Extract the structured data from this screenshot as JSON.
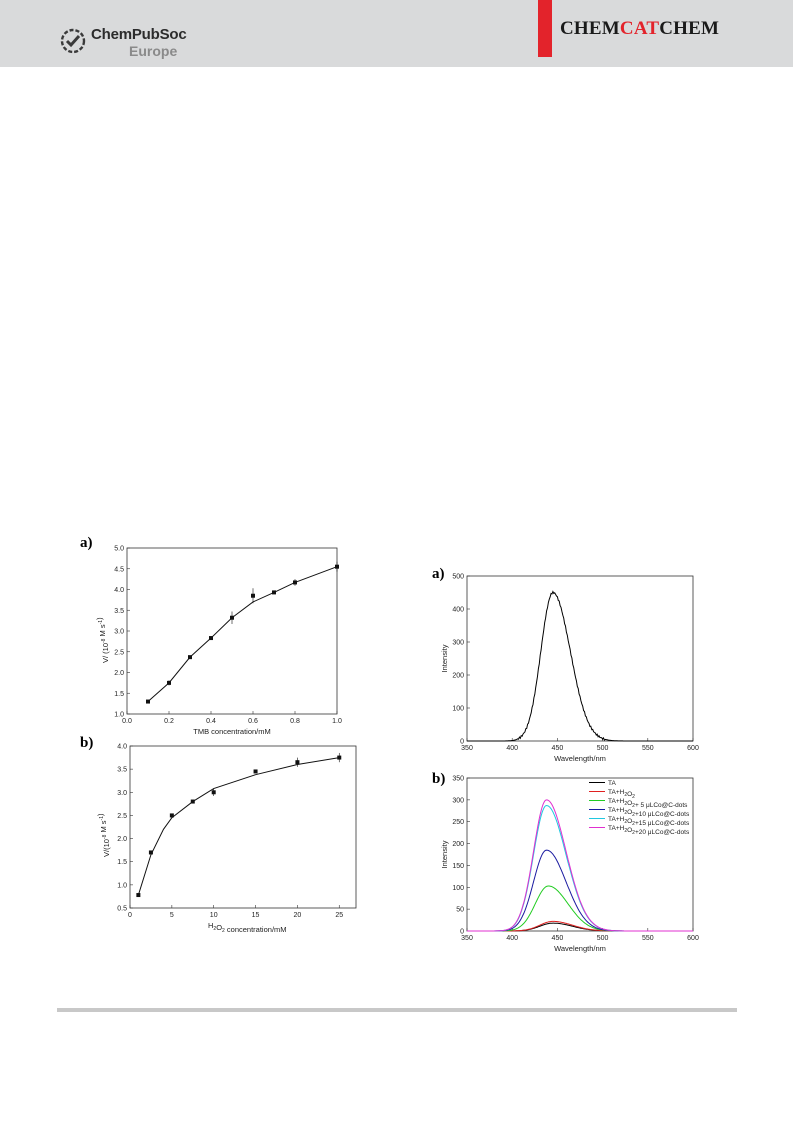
{
  "header": {
    "publisher_name": "ChemPubSoc",
    "publisher_sub": "Europe",
    "journal_left": "CHEM",
    "journal_mid": "CAT",
    "journal_right": "CHEM",
    "accent_color": "#e3232b"
  },
  "panel_labels": {
    "left_a": "a)",
    "left_b": "b)",
    "right_a": "a)",
    "right_b": "b)"
  },
  "chart_data": [
    {
      "id": "kinetics-tmb",
      "type": "scatter",
      "xlabel": "TMB concentration/mM",
      "ylabel_main": "V/ (10",
      "ylabel_sup": "-8",
      "ylabel_tail": " M s",
      "ylabel_sup2": "-1",
      "ylabel_close": ")",
      "xlim": [
        0.0,
        1.0
      ],
      "ylim": [
        1.0,
        5.0
      ],
      "xticks": [
        "0.0",
        "0.2",
        "0.4",
        "0.6",
        "0.8",
        "1.0"
      ],
      "yticks": [
        "1.0",
        "1.5",
        "2.0",
        "2.5",
        "3.0",
        "3.5",
        "4.0",
        "4.5",
        "5.0"
      ],
      "points": [
        {
          "x": 0.1,
          "y": 1.3,
          "err": 0.03
        },
        {
          "x": 0.2,
          "y": 1.75,
          "err": 0.06
        },
        {
          "x": 0.3,
          "y": 2.37,
          "err": 0.03
        },
        {
          "x": 0.4,
          "y": 2.83,
          "err": 0.03
        },
        {
          "x": 0.5,
          "y": 3.32,
          "err": 0.15
        },
        {
          "x": 0.6,
          "y": 3.85,
          "err": 0.18
        },
        {
          "x": 0.7,
          "y": 3.93,
          "err": 0.04
        },
        {
          "x": 0.8,
          "y": 4.17,
          "err": 0.08
        },
        {
          "x": 1.0,
          "y": 4.55,
          "err": 0.12
        }
      ],
      "fit": [
        [
          0.1,
          1.3
        ],
        [
          0.2,
          1.75
        ],
        [
          0.3,
          2.37
        ],
        [
          0.4,
          2.83
        ],
        [
          0.5,
          3.32
        ],
        [
          0.6,
          3.7
        ],
        [
          0.7,
          3.93
        ],
        [
          0.8,
          4.17
        ],
        [
          1.0,
          4.55
        ]
      ]
    },
    {
      "id": "kinetics-h2o2",
      "type": "scatter",
      "xlabel_pre": "H",
      "xlabel_sub1": "2",
      "xlabel_mid": "O",
      "xlabel_sub2": "2",
      "xlabel_post": " concentration/mM",
      "ylabel_main": "V/(10",
      "ylabel_sup": "-8",
      "ylabel_tail": " M s",
      "ylabel_sup2": "-1",
      "ylabel_close": ")",
      "xlim": [
        0,
        27
      ],
      "ylim": [
        0.5,
        4.0
      ],
      "xticks": [
        "0",
        "5",
        "10",
        "15",
        "20",
        "25"
      ],
      "yticks": [
        "0.5",
        "1.0",
        "1.5",
        "2.0",
        "2.5",
        "3.0",
        "3.5",
        "4.0"
      ],
      "points": [
        {
          "x": 1,
          "y": 0.78,
          "err": 0.03
        },
        {
          "x": 2.5,
          "y": 1.7,
          "err": 0.04
        },
        {
          "x": 5,
          "y": 2.5,
          "err": 0.03
        },
        {
          "x": 7.5,
          "y": 2.8,
          "err": 0.03
        },
        {
          "x": 10,
          "y": 3.0,
          "err": 0.08
        },
        {
          "x": 15,
          "y": 3.45,
          "err": 0.03
        },
        {
          "x": 20,
          "y": 3.65,
          "err": 0.1
        },
        {
          "x": 25,
          "y": 3.75,
          "err": 0.1
        }
      ],
      "fit": [
        [
          1,
          0.78
        ],
        [
          2.5,
          1.65
        ],
        [
          4,
          2.2
        ],
        [
          5,
          2.45
        ],
        [
          7.5,
          2.8
        ],
        [
          10,
          3.08
        ],
        [
          15,
          3.38
        ],
        [
          20,
          3.6
        ],
        [
          25,
          3.75
        ]
      ]
    },
    {
      "id": "fluorescence-ta",
      "type": "line",
      "xlabel": "Wavelength/nm",
      "ylabel": "Intensity",
      "xlim": [
        350,
        600
      ],
      "ylim": [
        0,
        500
      ],
      "xticks": [
        "350",
        "400",
        "450",
        "500",
        "550",
        "600"
      ],
      "yticks": [
        "0",
        "100",
        "200",
        "300",
        "400",
        "500"
      ],
      "series": [
        {
          "color": "#000000",
          "peak_x": 445,
          "peak_y": 450,
          "width_left": 22,
          "width_right": 32
        }
      ]
    },
    {
      "id": "fluorescence-cdots",
      "type": "line",
      "xlabel": "Wavelength/nm",
      "ylabel": "Intensity",
      "xlim": [
        350,
        600
      ],
      "ylim": [
        0,
        350
      ],
      "xticks": [
        "350",
        "400",
        "450",
        "500",
        "550",
        "600"
      ],
      "yticks": [
        "0",
        "50",
        "100",
        "150",
        "200",
        "250",
        "300",
        "350"
      ],
      "legend_position": "top-right",
      "series": [
        {
          "name": "TA",
          "color": "#000000",
          "peak_x": 445,
          "peak_y": 18
        },
        {
          "name": "TA+H2O2",
          "name_parts": [
            "TA+H",
            "2",
            "O",
            "2",
            ""
          ],
          "color": "#e02020",
          "peak_x": 445,
          "peak_y": 22
        },
        {
          "name": "TA+H2O2+ 5 μLCo@C-dots",
          "name_parts": [
            "TA+H",
            "2",
            "O",
            "2",
            "+ 5 μLCo@C-dots"
          ],
          "color": "#22cc22",
          "peak_x": 440,
          "peak_y": 103
        },
        {
          "name": "TA+H2O2+10 μLCo@C-dots",
          "name_parts": [
            "TA+H",
            "2",
            "O",
            "2",
            "+10 μLCo@C-dots"
          ],
          "color": "#1a1aa0",
          "peak_x": 438,
          "peak_y": 185
        },
        {
          "name": "TA+H2O2+15 μLCo@C-dots",
          "name_parts": [
            "TA+H",
            "2",
            "O",
            "2",
            "+15 μLCo@C-dots"
          ],
          "color": "#20c8e0",
          "peak_x": 438,
          "peak_y": 287
        },
        {
          "name": "TA+H2O2+20 μLCo@C-dots",
          "name_parts": [
            "TA+H",
            "2",
            "O",
            "2",
            "+20 μLCo@C-dots"
          ],
          "color": "#e030d0",
          "peak_x": 438,
          "peak_y": 300
        }
      ]
    }
  ]
}
